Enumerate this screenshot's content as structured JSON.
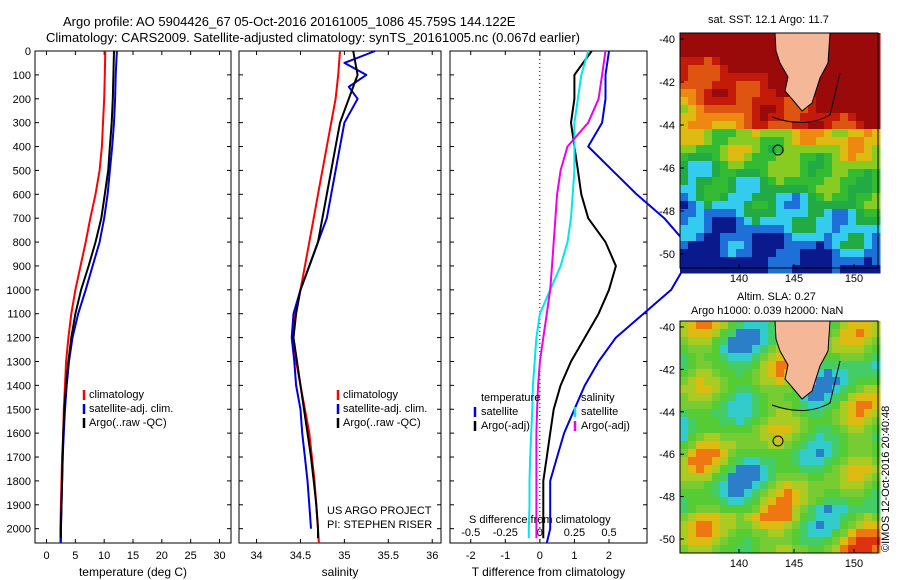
{
  "header": {
    "line1": "Argo profile: AO 5904426_67 05-Oct-2016 20161005_1086 45.759S 144.122E",
    "line2": "Climatology: CARS2009. Satellite-adjusted climatology: synTS_20161005.nc (0.067d earlier)"
  },
  "colors": {
    "clim": "#ff0000",
    "sat": "#0000dd",
    "argo": "#000000",
    "sal_sat": "#00e5ee",
    "sal_argo": "#ee00ee"
  },
  "maps": {
    "sst": {
      "title": "sat. SST: 12.1  Argo: 11.7",
      "xticks": [
        "140",
        "145",
        "150"
      ],
      "yticks": [
        "-40",
        "-42",
        "-44",
        "-46",
        "-48",
        "-50"
      ]
    },
    "sla": {
      "title1": "Altim. SLA: 0.27",
      "title2": "Argo h1000: 0.039 h2000: NaN",
      "xticks": [
        "140",
        "145",
        "150"
      ],
      "yticks": [
        "-40",
        "-42",
        "-44",
        "-46",
        "-48",
        "-50"
      ]
    }
  },
  "credit": "©IMOS 12-Oct-2016 20:40:48",
  "project": {
    "line1": "US ARGO PROJECT",
    "line2": "PI: STEPHEN RISER"
  },
  "chart_data": [
    {
      "type": "line",
      "xlabel": "temperature (deg C)",
      "xticks": [
        "0",
        "5",
        "10",
        "15",
        "20",
        "25",
        "30"
      ],
      "xlim": [
        -2,
        32
      ],
      "yticks": [
        "0",
        "100",
        "200",
        "300",
        "400",
        "500",
        "600",
        "700",
        "800",
        "900",
        "1000",
        "1100",
        "1200",
        "1300",
        "1400",
        "1500",
        "1600",
        "1700",
        "1800",
        "1900",
        "2000"
      ],
      "ylim": [
        0,
        2060
      ],
      "legend": [
        "climatology",
        "satellite-adj. clim.",
        "Argo(..raw -QC)"
      ],
      "series": [
        {
          "name": "climatology",
          "depth": [
            0,
            100,
            200,
            300,
            400,
            500,
            600,
            700,
            800,
            900,
            1000,
            1100,
            1200,
            1300,
            1400,
            1500,
            1600,
            1700,
            1800,
            1900,
            2000,
            2060
          ],
          "values": [
            10.2,
            10.1,
            10.0,
            9.8,
            9.6,
            9.2,
            8.5,
            7.6,
            6.8,
            5.9,
            5.0,
            4.3,
            3.8,
            3.4,
            3.2,
            3.0,
            2.9,
            2.7,
            2.6,
            2.5,
            2.4,
            2.4
          ]
        },
        {
          "name": "satellite-adj. clim.",
          "depth": [
            0,
            100,
            200,
            300,
            400,
            500,
            600,
            700,
            800,
            900,
            1000,
            1100,
            1200,
            1300,
            1400,
            1500,
            1600,
            1700,
            1800,
            1900,
            2000,
            2060
          ],
          "values": [
            12.2,
            12.0,
            11.9,
            11.7,
            11.4,
            11.0,
            10.6,
            10.0,
            9.2,
            8.0,
            6.8,
            5.5,
            4.5,
            3.9,
            3.5,
            3.2,
            3.0,
            2.8,
            2.7,
            2.6,
            2.5,
            2.5
          ]
        },
        {
          "name": "Argo(..raw -QC)",
          "depth": [
            0,
            100,
            200,
            300,
            400,
            500,
            600,
            700,
            800,
            900,
            1000,
            1100,
            1200,
            1300,
            1400,
            1500,
            1600,
            1700,
            1800,
            1900,
            2000,
            2040
          ],
          "values": [
            11.7,
            11.6,
            11.5,
            11.3,
            11.0,
            10.7,
            10.1,
            9.5,
            8.5,
            7.3,
            6.0,
            5.0,
            4.3,
            3.8,
            3.4,
            3.1,
            2.9,
            2.8,
            2.7,
            2.6,
            2.5,
            2.5
          ]
        }
      ]
    },
    {
      "type": "line",
      "xlabel": "salinity",
      "xticks": [
        "34",
        "34.5",
        "35",
        "35.5",
        "36"
      ],
      "xlim": [
        33.8,
        36.1
      ],
      "ylim": [
        0,
        2060
      ],
      "legend": [
        "climatology",
        "satellite-adj. clim.",
        "Argo(..raw -QC)"
      ],
      "series": [
        {
          "name": "climatology",
          "depth": [
            0,
            100,
            200,
            300,
            400,
            500,
            600,
            700,
            800,
            900,
            1000,
            1100,
            1200,
            1300,
            1400,
            1500,
            1600,
            1700,
            1800,
            1900,
            2000,
            2060
          ],
          "values": [
            34.95,
            34.93,
            34.9,
            34.85,
            34.8,
            34.75,
            34.7,
            34.65,
            34.6,
            34.55,
            34.5,
            34.43,
            34.41,
            34.45,
            34.5,
            34.55,
            34.6,
            34.63,
            34.66,
            34.68,
            34.7,
            34.71
          ]
        },
        {
          "name": "satellite-adj. clim.",
          "depth": [
            0,
            50,
            100,
            150,
            200,
            300,
            400,
            500,
            600,
            700,
            800,
            900,
            1000,
            1100,
            1200,
            1300,
            1400,
            1500,
            1600,
            1700,
            1800,
            1900,
            2000
          ],
          "values": [
            35.35,
            35.0,
            35.25,
            35.05,
            35.15,
            35.0,
            34.95,
            34.9,
            34.85,
            34.8,
            34.7,
            34.6,
            34.5,
            34.42,
            34.4,
            34.43,
            34.45,
            34.5,
            34.52,
            34.55,
            34.58,
            34.6,
            34.62
          ]
        },
        {
          "name": "Argo(..raw -QC)",
          "depth": [
            0,
            100,
            200,
            300,
            400,
            500,
            600,
            700,
            800,
            900,
            1000,
            1100,
            1200,
            1300,
            1400,
            1500,
            1600,
            1700,
            1800,
            1900,
            2000,
            2040
          ],
          "values": [
            35.1,
            35.15,
            35.05,
            34.95,
            34.9,
            34.85,
            34.8,
            34.75,
            34.7,
            34.6,
            34.5,
            34.45,
            34.42,
            34.46,
            34.5,
            34.54,
            34.58,
            34.62,
            34.65,
            34.68,
            34.7,
            34.7
          ]
        }
      ]
    },
    {
      "type": "line",
      "xlabel": "T difference from climatology",
      "xlabel2": "S difference from climatology",
      "xticks": [
        "-2",
        "-1",
        "0",
        "1",
        "2"
      ],
      "xticks_s": [
        "-0.5",
        "-0.25",
        "0",
        "0.25",
        "0.5"
      ],
      "xlim": [
        -2.6,
        3.1
      ],
      "ylim": [
        0,
        2060
      ],
      "legend_headers": [
        "temperature",
        "salinity"
      ],
      "legend": [
        "satellite",
        "Argo(-adj)",
        "satellite",
        "Argo(-adj)"
      ],
      "series": [
        {
          "name": "satellite",
          "depth": [
            0,
            100,
            200,
            300,
            400,
            500,
            600,
            700,
            800,
            900,
            1000,
            1100,
            1200,
            1300,
            1400,
            1500,
            1600,
            1700,
            1800,
            1900,
            2000,
            2060
          ],
          "values": [
            2.0,
            1.9,
            1.9,
            1.8,
            1.4,
            2.1,
            2.8,
            3.6,
            4.2,
            4.2,
            3.8,
            3.0,
            2.2,
            1.7,
            1.3,
            1.0,
            0.7,
            0.5,
            0.3,
            0.3,
            0.3,
            0.2
          ]
        },
        {
          "name": "Argo(-adj)",
          "depth": [
            0,
            100,
            200,
            300,
            400,
            500,
            600,
            700,
            800,
            900,
            1000,
            1100,
            1200,
            1300,
            1400,
            1500,
            1600,
            1700,
            1800,
            1900,
            2000,
            2040
          ],
          "values": [
            1.5,
            1.0,
            1.0,
            0.9,
            1.0,
            1.1,
            1.2,
            1.4,
            1.9,
            2.2,
            2.0,
            1.7,
            1.3,
            0.9,
            0.6,
            0.4,
            0.3,
            0.2,
            0.1,
            0.1,
            0.1,
            0.1
          ]
        },
        {
          "name": "satellite",
          "depth": [
            0,
            100,
            200,
            300,
            400,
            500,
            600,
            700,
            800,
            900,
            1000,
            1100,
            1200,
            1300,
            1400,
            1500,
            1600,
            1700,
            1800,
            1900,
            2000,
            2040
          ],
          "values": [
            1.4,
            1.2,
            1.1,
            1.0,
            1.0,
            1.0,
            0.95,
            0.9,
            0.8,
            0.6,
            0.3,
            0.0,
            -0.1,
            -0.15,
            -0.2,
            -0.22,
            -0.25,
            -0.28,
            -0.3,
            -0.3,
            -0.32,
            -0.32
          ]
        },
        {
          "name": "Argo(-adj)",
          "depth": [
            0,
            100,
            200,
            300,
            400,
            500,
            600,
            700,
            800,
            900,
            1000,
            1100,
            1200,
            1300,
            1400,
            1500,
            1600,
            1700,
            1800,
            1900,
            2000,
            2040
          ],
          "values": [
            1.9,
            1.8,
            1.7,
            1.4,
            0.8,
            0.6,
            0.5,
            0.45,
            0.4,
            0.35,
            0.3,
            0.2,
            0.1,
            0.0,
            -0.05,
            -0.08,
            -0.1,
            -0.1,
            -0.1,
            -0.1,
            -0.1,
            -0.1
          ]
        }
      ]
    }
  ]
}
